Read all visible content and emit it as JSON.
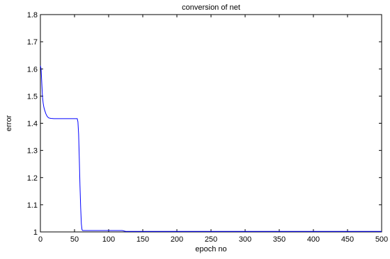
{
  "chart_data": {
    "type": "line",
    "title": "conversion of net",
    "xlabel": "epoch no",
    "ylabel": "error",
    "xlim": [
      0,
      500
    ],
    "ylim": [
      1,
      1.8
    ],
    "xticks": [
      0,
      50,
      100,
      150,
      200,
      250,
      300,
      350,
      400,
      450,
      500
    ],
    "yticks": [
      1,
      1.1,
      1.2,
      1.3,
      1.4,
      1.5,
      1.6,
      1.7,
      1.8
    ],
    "xtick_labels": [
      "0",
      "50",
      "100",
      "150",
      "200",
      "250",
      "300",
      "350",
      "400",
      "450",
      "500"
    ],
    "ytick_labels": [
      "1",
      "1.1",
      "1.2",
      "1.3",
      "1.4",
      "1.5",
      "1.6",
      "1.7",
      "1.8"
    ],
    "grid": false,
    "line_color": "#0000ff",
    "series": [
      {
        "x": [
          0,
          1,
          2,
          3,
          4,
          5,
          6,
          8,
          10,
          12,
          15,
          20,
          30,
          40,
          50,
          54,
          55,
          56,
          57,
          58,
          59,
          60,
          61,
          62,
          64,
          70,
          80,
          100,
          120,
          125,
          150,
          200,
          250,
          300,
          350,
          400,
          450,
          500
        ],
        "y": [
          1.612,
          1.6,
          1.55,
          1.5,
          1.475,
          1.46,
          1.45,
          1.435,
          1.425,
          1.42,
          1.418,
          1.417,
          1.417,
          1.417,
          1.417,
          1.417,
          1.405,
          1.36,
          1.27,
          1.17,
          1.09,
          1.03,
          1.008,
          1.005,
          1.005,
          1.005,
          1.005,
          1.005,
          1.005,
          1.002,
          1.002,
          1.002,
          1.002,
          1.002,
          1.002,
          1.002,
          1.002,
          1.002
        ]
      }
    ]
  }
}
